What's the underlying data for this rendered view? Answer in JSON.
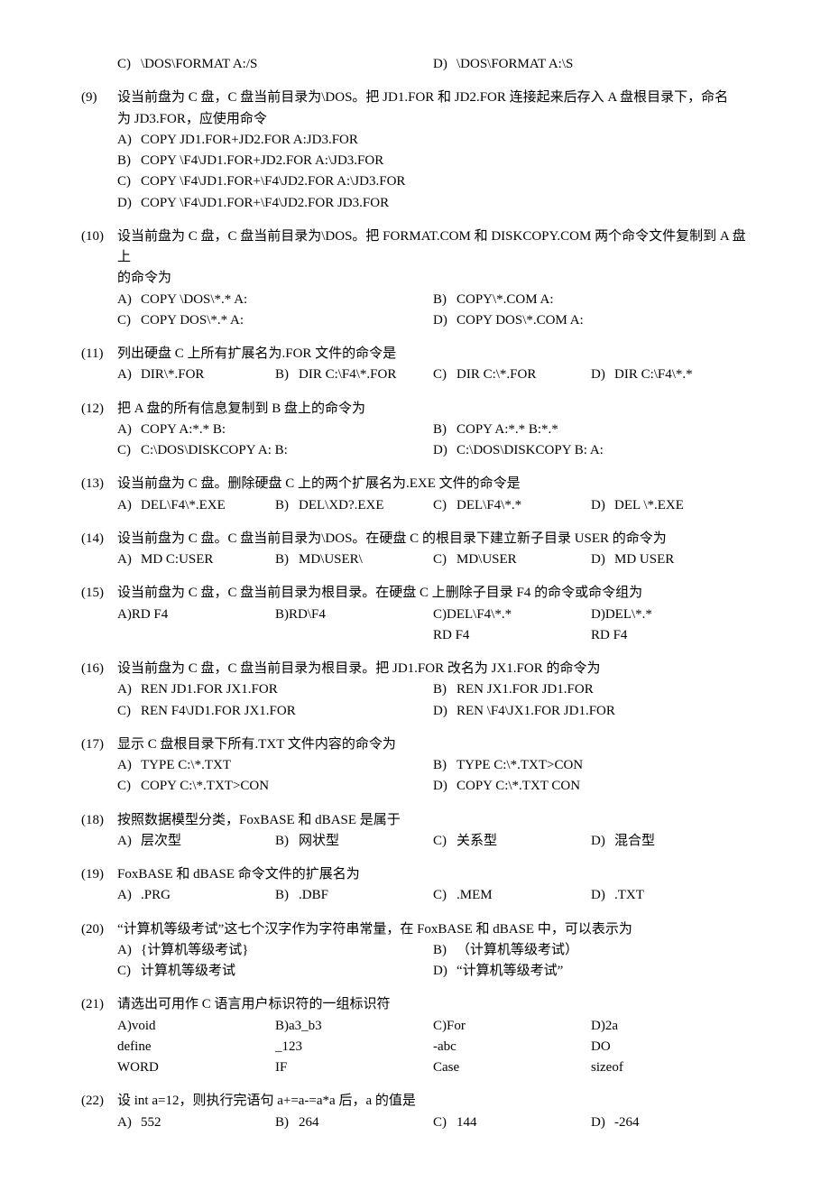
{
  "q8tail": {
    "C": "\\DOS\\FORMAT A:/S",
    "D": "\\DOS\\FORMAT A:\\S"
  },
  "q9": {
    "num": "(9)",
    "text1": "设当前盘为 C 盘，C 盘当前目录为\\DOS。把 JD1.FOR 和 JD2.FOR 连接起来后存入 A 盘根目录下，命名",
    "text2": "为 JD3.FOR，应使用命令",
    "A": "COPY JD1.FOR+JD2.FOR A:JD3.FOR",
    "B": "COPY \\F4\\JD1.FOR+JD2.FOR A:\\JD3.FOR",
    "C": "COPY \\F4\\JD1.FOR+\\F4\\JD2.FOR A:\\JD3.FOR",
    "D": "COPY \\F4\\JD1.FOR+\\F4\\JD2.FOR JD3.FOR"
  },
  "q10": {
    "num": "(10)",
    "text1": "设当前盘为 C 盘，C 盘当前目录为\\DOS。把 FORMAT.COM 和 DISKCOPY.COM 两个命令文件复制到 A 盘上",
    "text2": "的命令为",
    "A": "COPY \\DOS\\*.* A:",
    "B": "COPY\\*.COM A:",
    "C": "COPY DOS\\*.* A:",
    "D": "COPY DOS\\*.COM A:"
  },
  "q11": {
    "num": "(11)",
    "text": "列出硬盘 C 上所有扩展名为.FOR 文件的命令是",
    "A": "DIR\\*.FOR",
    "B": "DIR C:\\F4\\*.FOR",
    "C": "DIR C:\\*.FOR",
    "D": "DIR C:\\F4\\*.*"
  },
  "q12": {
    "num": "(12)",
    "text": "把 A 盘的所有信息复制到 B 盘上的命令为",
    "A": "COPY A:*.* B:",
    "B": "COPY A:*.* B:*.*",
    "C": "C:\\DOS\\DISKCOPY A: B:",
    "D": "C:\\DOS\\DISKCOPY B: A:"
  },
  "q13": {
    "num": "(13)",
    "text": "设当前盘为 C 盘。删除硬盘 C 上的两个扩展名为.EXE 文件的命令是",
    "A": "DEL\\F4\\*.EXE",
    "B": "DEL\\XD?.EXE",
    "C": "DEL\\F4\\*.*",
    "D": "DEL \\*.EXE"
  },
  "q14": {
    "num": "(14)",
    "text": "设当前盘为 C 盘。C 盘当前目录为\\DOS。在硬盘 C 的根目录下建立新子目录 USER 的命令为",
    "A": "MD C:USER",
    "B": "MD\\USER\\",
    "C": "MD\\USER",
    "D": "MD USER"
  },
  "q15": {
    "num": "(15)",
    "text": "设当前盘为 C 盘，C 盘当前目录为根目录。在硬盘 C 上删除子目录 F4 的命令或命令组为",
    "A": "RD F4",
    "B": "RD\\F4",
    "C1": "DEL\\F4\\*.*",
    "C2": "RD F4",
    "D1": "DEL\\*.*",
    "D2": "RD F4"
  },
  "q16": {
    "num": "(16)",
    "text": "设当前盘为 C 盘，C 盘当前目录为根目录。把 JD1.FOR 改名为 JX1.FOR 的命令为",
    "A": "REN JD1.FOR JX1.FOR",
    "B": "REN JX1.FOR JD1.FOR",
    "C": "REN F4\\JD1.FOR JX1.FOR",
    "D": "REN \\F4\\JX1.FOR JD1.FOR"
  },
  "q17": {
    "num": "(17)",
    "text": "显示 C 盘根目录下所有.TXT 文件内容的命令为",
    "A": "TYPE C:\\*.TXT",
    "B": "TYPE C:\\*.TXT>CON",
    "C": "COPY C:\\*.TXT>CON",
    "D": "COPY C:\\*.TXT CON"
  },
  "q18": {
    "num": "(18)",
    "text": "按照数据模型分类，FoxBASE 和 dBASE 是属于",
    "A": "层次型",
    "B": "网状型",
    "C": "关系型",
    "D": "混合型"
  },
  "q19": {
    "num": "(19)",
    "text": "FoxBASE 和 dBASE 命令文件的扩展名为",
    "A": ".PRG",
    "B": ".DBF",
    "C": ".MEM",
    "D": ".TXT"
  },
  "q20": {
    "num": "(20)",
    "text": "“计算机等级考试”这七个汉字作为字符串常量，在 FoxBASE 和 dBASE 中，可以表示为",
    "A": "{计算机等级考试}",
    "B": "（计算机等级考试）",
    "C": " 计算机等级考试",
    "D": "“计算机等级考试”"
  },
  "q21": {
    "num": "(21)",
    "text": "请选出可用作 C 语言用户标识符的一组标识符",
    "A1": "void",
    "A2": "define",
    "A3": "WORD",
    "B1": "a3_b3",
    "B2": "_123",
    "B3": "IF",
    "C1": "For",
    "C2": "-abc",
    "C3": "Case",
    "D1": "2a",
    "D2": "DO",
    "D3": "sizeof"
  },
  "q22": {
    "num": "(22)",
    "text": "设 int a=12，则执行完语句 a+=a-=a*a 后，a 的值是",
    "A": "552",
    "B": "264",
    "C": "144",
    "D": "-264"
  },
  "labels": {
    "A": "A)",
    "B": "B)",
    "C": "C)",
    "D": "D)"
  }
}
